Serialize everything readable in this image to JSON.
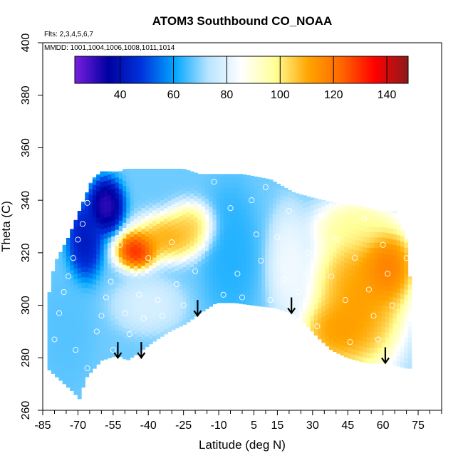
{
  "chart_data": {
    "type": "heatmap",
    "title": "ATOM3 Southbound CO_NOAA",
    "flights_note": "Flts: 2,3,4,5,6,7",
    "dates_note": "MMDD: 1001,1004,1006,1008,1011,1014",
    "xlabel": "Latitude (deg N)",
    "ylabel": "Theta (C)",
    "xlim": [
      -85,
      85
    ],
    "ylim": [
      260,
      400
    ],
    "x_ticks": [
      -85,
      -70,
      -55,
      -40,
      -25,
      -10,
      5,
      15,
      30,
      45,
      60,
      75
    ],
    "y_ticks": [
      260,
      280,
      300,
      320,
      340,
      360,
      380,
      400
    ],
    "colorbar": {
      "range": [
        23,
        148
      ],
      "ticks": [
        40,
        60,
        80,
        100,
        120,
        140
      ],
      "colors": [
        "#7a1ee0",
        "#0000a0",
        "#0033dd",
        "#00a6ff",
        "#b8e4ff",
        "#ffffff",
        "#ffff99",
        "#ffa500",
        "#ff6600",
        "#ff0000",
        "#8b1a1a"
      ]
    },
    "surface_outline": [
      [
        -83,
        276
      ],
      [
        -72,
        267
      ],
      [
        -69,
        264
      ],
      [
        -67,
        272
      ],
      [
        -60,
        279
      ],
      [
        -53,
        281
      ],
      [
        -49,
        279
      ],
      [
        -44,
        282
      ],
      [
        -38,
        286
      ],
      [
        -31,
        290
      ],
      [
        -24,
        293
      ],
      [
        -18,
        297
      ],
      [
        -11,
        301
      ],
      [
        -3,
        301
      ],
      [
        5,
        300
      ],
      [
        14,
        299
      ],
      [
        21,
        297
      ],
      [
        27,
        293
      ],
      [
        32,
        288
      ],
      [
        38,
        283
      ],
      [
        45,
        280
      ],
      [
        53,
        278
      ],
      [
        60,
        278
      ],
      [
        66,
        277
      ],
      [
        70,
        276
      ]
    ],
    "top_outline": [
      [
        -83,
        301
      ],
      [
        -80,
        316
      ],
      [
        -74,
        326
      ],
      [
        -68,
        339
      ],
      [
        -64,
        348
      ],
      [
        -60,
        351
      ],
      [
        -52,
        351
      ],
      [
        -50,
        352
      ],
      [
        -25,
        352
      ],
      [
        -18,
        350
      ],
      [
        0,
        350
      ],
      [
        12,
        348
      ],
      [
        22,
        343
      ],
      [
        30,
        341
      ],
      [
        40,
        339
      ],
      [
        50,
        338
      ],
      [
        58,
        336
      ],
      [
        65,
        336
      ],
      [
        70,
        325
      ],
      [
        72,
        305
      ],
      [
        72,
        276
      ]
    ],
    "blobs": [
      {
        "lat": -45,
        "theta": 321,
        "value": 140,
        "sx": 6,
        "sy": 5
      },
      {
        "lat": -32,
        "theta": 326,
        "value": 115,
        "sx": 10,
        "sy": 6
      },
      {
        "lat": -22,
        "theta": 330,
        "value": 108,
        "sx": 7,
        "sy": 6
      },
      {
        "lat": -58,
        "theta": 338,
        "value": 25,
        "sx": 5,
        "sy": 7
      },
      {
        "lat": -67,
        "theta": 325,
        "value": 38,
        "sx": 5,
        "sy": 10
      },
      {
        "lat": -5,
        "theta": 320,
        "value": 62,
        "sx": 8,
        "sy": 18
      },
      {
        "lat": -75,
        "theta": 290,
        "value": 66,
        "sx": 8,
        "sy": 15
      },
      {
        "lat": 50,
        "theta": 303,
        "value": 118,
        "sx": 14,
        "sy": 20
      },
      {
        "lat": 40,
        "theta": 290,
        "value": 116,
        "sx": 10,
        "sy": 8
      },
      {
        "lat": 62,
        "theta": 315,
        "value": 125,
        "sx": 8,
        "sy": 10
      },
      {
        "lat": 48,
        "theta": 330,
        "value": 100,
        "sx": 12,
        "sy": 7
      },
      {
        "lat": 20,
        "theta": 315,
        "value": 85,
        "sx": 6,
        "sy": 15
      },
      {
        "lat": -40,
        "theta": 300,
        "value": 80,
        "sx": 10,
        "sy": 7
      }
    ],
    "base_value": 68,
    "sample_points": [
      [
        -80,
        287
      ],
      [
        -78,
        297
      ],
      [
        -76,
        305
      ],
      [
        -74,
        311
      ],
      [
        -72,
        318
      ],
      [
        -70,
        325
      ],
      [
        -68,
        331
      ],
      [
        -66,
        339
      ],
      [
        -62,
        290
      ],
      [
        -60,
        296
      ],
      [
        -58,
        303
      ],
      [
        -56,
        309
      ],
      [
        -54,
        317
      ],
      [
        -52,
        323
      ],
      [
        -50,
        297
      ],
      [
        -48,
        289
      ],
      [
        -46,
        312
      ],
      [
        -44,
        304
      ],
      [
        -42,
        295
      ],
      [
        -40,
        318
      ],
      [
        -36,
        302
      ],
      [
        -34,
        296
      ],
      [
        -30,
        324
      ],
      [
        -28,
        308
      ],
      [
        -25,
        300
      ],
      [
        -20,
        313
      ],
      [
        -16,
        322
      ],
      [
        -12,
        347
      ],
      [
        -8,
        304
      ],
      [
        -5,
        337
      ],
      [
        -2,
        312
      ],
      [
        0,
        303
      ],
      [
        4,
        340
      ],
      [
        6,
        327
      ],
      [
        8,
        317
      ],
      [
        10,
        345
      ],
      [
        12,
        302
      ],
      [
        15,
        326
      ],
      [
        18,
        310
      ],
      [
        20,
        336
      ],
      [
        24,
        305
      ],
      [
        28,
        320
      ],
      [
        32,
        292
      ],
      [
        35,
        334
      ],
      [
        38,
        311
      ],
      [
        40,
        325
      ],
      [
        44,
        302
      ],
      [
        46,
        286
      ],
      [
        48,
        318
      ],
      [
        52,
        333
      ],
      [
        54,
        306
      ],
      [
        56,
        296
      ],
      [
        58,
        287
      ],
      [
        60,
        323
      ],
      [
        62,
        312
      ],
      [
        64,
        300
      ],
      [
        66,
        284
      ],
      [
        68,
        335
      ],
      [
        70,
        318
      ],
      [
        71,
        295
      ],
      [
        -64,
        270
      ],
      [
        -66,
        276
      ],
      [
        -71,
        283
      ],
      [
        -55,
        283
      ]
    ],
    "arrows": [
      {
        "lat": -53,
        "theta": 286
      },
      {
        "lat": -43,
        "theta": 286
      },
      {
        "lat": -19,
        "theta": 302
      },
      {
        "lat": 21,
        "theta": 303
      },
      {
        "lat": 61,
        "theta": 284
      }
    ]
  }
}
